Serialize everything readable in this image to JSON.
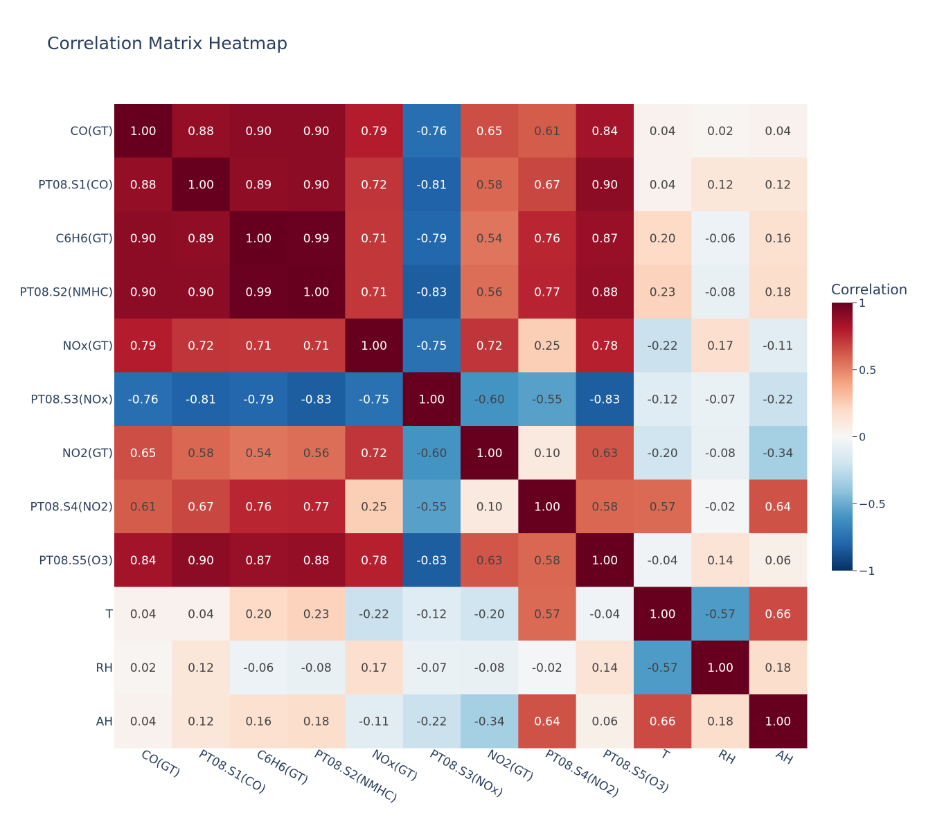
{
  "chart_data": {
    "type": "heatmap",
    "title": "Correlation Matrix Heatmap",
    "variables": [
      "CO(GT)",
      "PT08.S1(CO)",
      "C6H6(GT)",
      "PT08.S2(NMHC)",
      "NOx(GT)",
      "PT08.S3(NOx)",
      "NO2(GT)",
      "PT08.S4(NO2)",
      "PT08.S5(O3)",
      "T",
      "RH",
      "AH"
    ],
    "values": [
      [
        1.0,
        0.88,
        0.9,
        0.9,
        0.79,
        -0.76,
        0.65,
        0.61,
        0.84,
        0.04,
        0.02,
        0.04
      ],
      [
        0.88,
        1.0,
        0.89,
        0.9,
        0.72,
        -0.81,
        0.58,
        0.67,
        0.9,
        0.04,
        0.12,
        0.12
      ],
      [
        0.9,
        0.89,
        1.0,
        0.99,
        0.71,
        -0.79,
        0.54,
        0.76,
        0.87,
        0.2,
        -0.06,
        0.16
      ],
      [
        0.9,
        0.9,
        0.99,
        1.0,
        0.71,
        -0.83,
        0.56,
        0.77,
        0.88,
        0.23,
        -0.08,
        0.18
      ],
      [
        0.79,
        0.72,
        0.71,
        0.71,
        1.0,
        -0.75,
        0.72,
        0.25,
        0.78,
        -0.22,
        0.17,
        -0.11
      ],
      [
        -0.76,
        -0.81,
        -0.79,
        -0.83,
        -0.75,
        1.0,
        -0.6,
        -0.55,
        -0.83,
        -0.12,
        -0.07,
        -0.22
      ],
      [
        0.65,
        0.58,
        0.54,
        0.56,
        0.72,
        -0.6,
        1.0,
        0.1,
        0.63,
        -0.2,
        -0.08,
        -0.34
      ],
      [
        0.61,
        0.67,
        0.76,
        0.77,
        0.25,
        -0.55,
        0.1,
        1.0,
        0.58,
        0.57,
        -0.02,
        0.64
      ],
      [
        0.84,
        0.9,
        0.87,
        0.88,
        0.78,
        -0.83,
        0.63,
        0.58,
        1.0,
        -0.04,
        0.14,
        0.06
      ],
      [
        0.04,
        0.04,
        0.2,
        0.23,
        -0.22,
        -0.12,
        -0.2,
        0.57,
        -0.04,
        1.0,
        -0.57,
        0.66
      ],
      [
        0.02,
        0.12,
        -0.06,
        -0.08,
        0.17,
        -0.07,
        -0.08,
        -0.02,
        0.14,
        -0.57,
        1.0,
        0.18
      ],
      [
        0.04,
        0.12,
        0.16,
        0.18,
        -0.11,
        -0.22,
        -0.34,
        0.64,
        0.06,
        0.66,
        0.18,
        1.0
      ]
    ],
    "zlim": [
      -1,
      1
    ],
    "colorscale": "RdBu",
    "colorbar": {
      "title": "Correlation",
      "ticks": [
        1,
        0.5,
        0,
        -0.5,
        -1
      ],
      "tick_labels": [
        "1",
        "0.5",
        "0",
        "−0.5",
        "−1"
      ]
    }
  }
}
